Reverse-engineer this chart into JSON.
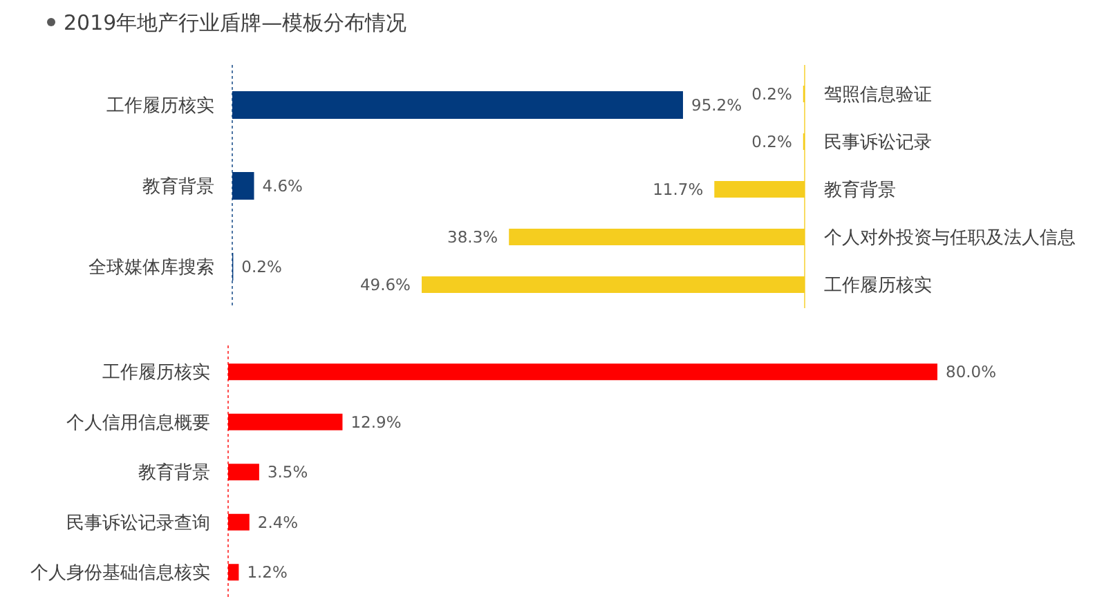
{
  "chart_data": [
    {
      "type": "bar",
      "title": "2019年地产行业盾牌—模板分布情况",
      "orientation": "horizontal",
      "categories": [
        "工作履历核实",
        "教育背景",
        "全球媒体库搜索"
      ],
      "values": [
        95.2,
        4.6,
        0.2
      ],
      "color": "#023a7e",
      "value_labels": [
        "95.2%",
        "4.6%",
        "0.2%"
      ]
    },
    {
      "type": "bar",
      "orientation": "horizontal",
      "categories": [
        "驾照信息验证",
        "民事诉讼记录",
        "教育背景",
        "个人对外投资与任职及法人信息",
        "工作履历核实"
      ],
      "values": [
        0.2,
        0.2,
        11.7,
        38.3,
        49.6
      ],
      "color": "#f5cd1f",
      "value_labels": [
        "0.2%",
        "0.2%",
        "11.7%",
        "38.3%",
        "49.6%"
      ]
    },
    {
      "type": "bar",
      "orientation": "horizontal",
      "categories": [
        "工作履历核实",
        "个人信用信息概要",
        "教育背景",
        "民事诉讼记录查询",
        "个人身份基础信息核实"
      ],
      "values": [
        80.0,
        12.9,
        3.5,
        2.4,
        1.2
      ],
      "color": "#ff0000",
      "value_labels": [
        "80.0%",
        "12.9%",
        "3.5%",
        "2.4%",
        "1.2%"
      ]
    }
  ]
}
